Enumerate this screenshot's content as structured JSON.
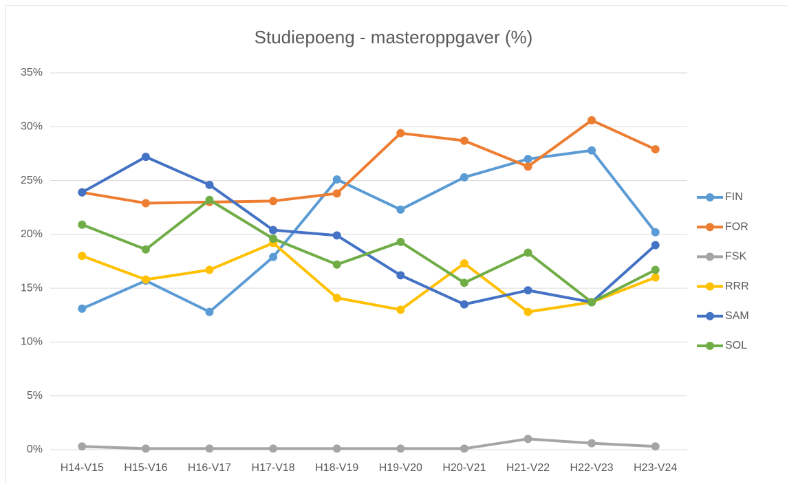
{
  "chart_data": {
    "type": "line",
    "title": "Studiepoeng - masteroppgaver (%)",
    "categories": [
      "H14-V15",
      "H15-V16",
      "H16-V17",
      "H17-V18",
      "H18-V19",
      "H19-V20",
      "H20-V21",
      "H21-V22",
      "H22-V23",
      "H23-V24"
    ],
    "series": [
      {
        "name": "FIN",
        "color": "#5b9bd5",
        "values": [
          13.1,
          15.7,
          12.8,
          17.9,
          25.1,
          22.3,
          25.3,
          27.0,
          27.8,
          20.2
        ]
      },
      {
        "name": "FOR",
        "color": "#ed7d31",
        "values": [
          23.9,
          22.9,
          23.0,
          23.1,
          23.8,
          29.4,
          28.7,
          26.3,
          30.6,
          27.9
        ]
      },
      {
        "name": "FSK",
        "color": "#a5a5a5",
        "values": [
          0.3,
          0.1,
          0.1,
          0.1,
          0.1,
          0.1,
          0.1,
          1.0,
          0.6,
          0.3
        ]
      },
      {
        "name": "RRR",
        "color": "#ffc000",
        "values": [
          18.0,
          15.8,
          16.7,
          19.2,
          14.1,
          13.0,
          17.3,
          12.8,
          13.7,
          16.0
        ]
      },
      {
        "name": "SAM",
        "color": "#4472c4",
        "values": [
          23.9,
          27.2,
          24.6,
          20.4,
          19.9,
          16.2,
          13.5,
          14.8,
          13.7,
          19.0
        ]
      },
      {
        "name": "SOL",
        "color": "#70ad47",
        "values": [
          20.9,
          18.6,
          23.2,
          19.6,
          17.2,
          19.3,
          15.5,
          18.3,
          13.7,
          16.7
        ]
      }
    ],
    "ylim": [
      0,
      35
    ],
    "yticks": [
      {
        "value": 0,
        "label": "0%"
      },
      {
        "value": 5,
        "label": "5%"
      },
      {
        "value": 10,
        "label": "10%"
      },
      {
        "value": 15,
        "label": "15%"
      },
      {
        "value": 20,
        "label": "20%"
      },
      {
        "value": 25,
        "label": "25%"
      },
      {
        "value": 30,
        "label": "30%"
      },
      {
        "value": 35,
        "label": "35%"
      }
    ],
    "grid": true,
    "legend": "right"
  }
}
